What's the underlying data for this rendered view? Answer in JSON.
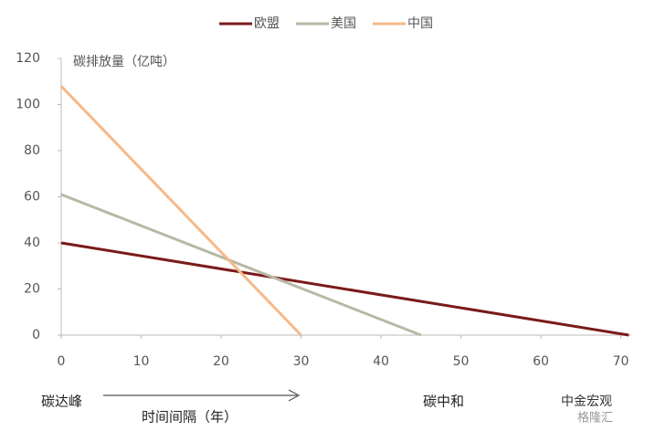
{
  "chart_data": {
    "type": "line",
    "y_label": "碳排放量（亿吨）",
    "x_label": "时间间隔（年）",
    "annotations": {
      "peak": "碳达峰",
      "neutral": "碳中和"
    },
    "watermark": [
      "中金宏观",
      "格隆汇"
    ],
    "series": [
      {
        "name": "欧盟",
        "color": "#7a1a1a",
        "x": [
          0,
          71
        ],
        "values": [
          40,
          0
        ]
      },
      {
        "name": "美国",
        "color": "#b8b8a6",
        "x": [
          0,
          45
        ],
        "values": [
          61,
          0
        ]
      },
      {
        "name": "中国",
        "color": "#f5b98a",
        "x": [
          0,
          30
        ],
        "values": [
          108,
          0
        ]
      }
    ],
    "xlim": [
      0,
      72
    ],
    "xticks": [
      0,
      10,
      20,
      30,
      40,
      50,
      60,
      70
    ],
    "ylim": [
      0,
      120
    ],
    "yticks": [
      0,
      20,
      40,
      60,
      80,
      100,
      120
    ],
    "legend": "top"
  }
}
